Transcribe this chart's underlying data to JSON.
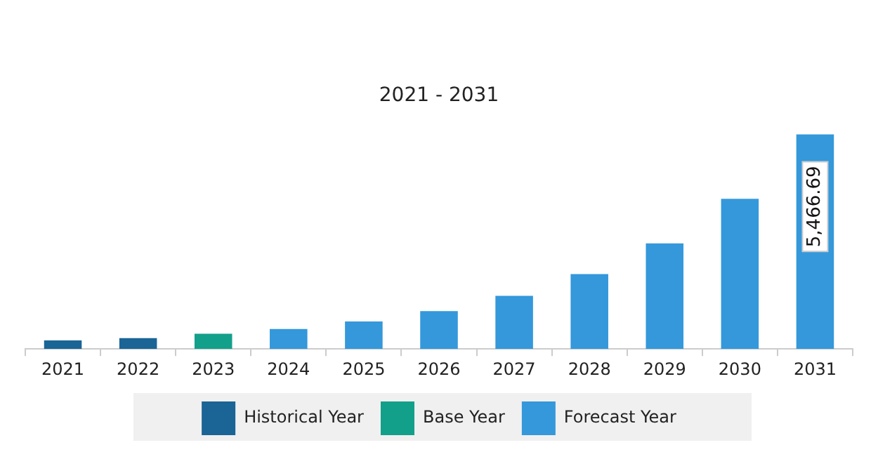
{
  "chart_data": {
    "type": "bar",
    "title": "2021 - 2031",
    "tick_labels": "x",
    "legend": "bottom",
    "grid": false,
    "categories": [
      "2021",
      "2022",
      "2023",
      "2024",
      "2025",
      "2026",
      "2027",
      "2028",
      "2029",
      "2030",
      "2031"
    ],
    "series": [
      {
        "name": "Historical Year",
        "color": "#1a6496",
        "values": [
          217,
          278,
          null,
          null,
          null,
          null,
          null,
          null,
          null,
          null,
          null
        ]
      },
      {
        "name": "Base Year",
        "color": "#13a08a",
        "values": [
          null,
          null,
          386,
          null,
          null,
          null,
          null,
          null,
          null,
          null,
          null
        ]
      },
      {
        "name": "Forecast Year",
        "color": "#3498db",
        "values": [
          null,
          null,
          null,
          507,
          700,
          965,
          1352,
          1907,
          2691,
          3825,
          5466.69
        ],
        "value_labels": [
          null,
          null,
          null,
          null,
          null,
          null,
          null,
          null,
          null,
          null,
          "5,466.69"
        ]
      }
    ]
  }
}
